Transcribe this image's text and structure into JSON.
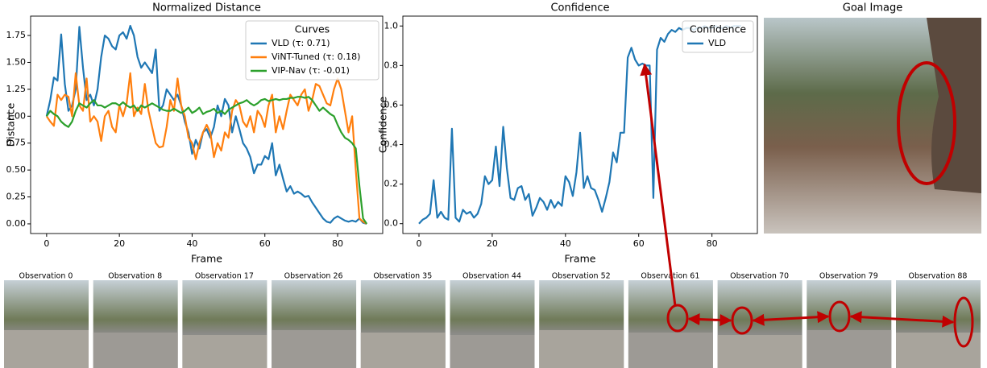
{
  "chart_data": [
    {
      "type": "line",
      "title": "Normalized Distance",
      "x_label": "Frame",
      "y_label": "Distance",
      "x": [
        0,
        1,
        2,
        3,
        4,
        5,
        6,
        7,
        8,
        9,
        10,
        11,
        12,
        13,
        14,
        15,
        16,
        17,
        18,
        19,
        20,
        21,
        22,
        23,
        24,
        25,
        26,
        27,
        28,
        29,
        30,
        31,
        32,
        33,
        34,
        35,
        36,
        37,
        38,
        39,
        40,
        41,
        42,
        43,
        44,
        45,
        46,
        47,
        48,
        49,
        50,
        51,
        52,
        53,
        54,
        55,
        56,
        57,
        58,
        59,
        60,
        61,
        62,
        63,
        64,
        65,
        66,
        67,
        68,
        69,
        70,
        71,
        72,
        73,
        74,
        75,
        76,
        77,
        78,
        79,
        80,
        81,
        82,
        83,
        84,
        85,
        86,
        87,
        88
      ],
      "xlim": [
        -4.4,
        92.4
      ],
      "xticks": [
        0,
        20,
        40,
        60,
        80
      ],
      "ylim": [
        -0.09,
        1.93
      ],
      "yticks": [
        {
          "value": 0,
          "label": "0.00"
        },
        0.25,
        {
          "value": 0.5,
          "label": "0.50"
        },
        0.75,
        {
          "value": 1,
          "label": "1.00"
        },
        1.25,
        {
          "value": 1.5,
          "label": "1.50"
        },
        1.75
      ],
      "legend_title": "Curves",
      "legend": "upper right",
      "series": [
        {
          "name": "VLD (τ: 0.71)",
          "color": "#1f77b4",
          "values": [
            1.0,
            1.15,
            1.36,
            1.33,
            1.76,
            1.3,
            1.05,
            1.1,
            1.25,
            1.83,
            1.45,
            1.15,
            1.2,
            1.1,
            1.25,
            1.55,
            1.75,
            1.72,
            1.65,
            1.62,
            1.75,
            1.78,
            1.72,
            1.84,
            1.75,
            1.55,
            1.45,
            1.5,
            1.45,
            1.4,
            1.62,
            1.05,
            1.1,
            1.25,
            1.2,
            1.15,
            1.2,
            1.1,
            0.95,
            0.85,
            0.65,
            0.78,
            0.7,
            0.85,
            0.88,
            0.8,
            0.9,
            1.1,
            1.0,
            1.16,
            1.1,
            0.85,
            1.0,
            0.88,
            0.75,
            0.7,
            0.62,
            0.47,
            0.55,
            0.55,
            0.63,
            0.6,
            0.75,
            0.45,
            0.55,
            0.42,
            0.3,
            0.35,
            0.28,
            0.3,
            0.28,
            0.25,
            0.26,
            0.2,
            0.15,
            0.1,
            0.05,
            0.02,
            0.01,
            0.05,
            0.07,
            0.05,
            0.03,
            0.02,
            0.03,
            0.02,
            0.05,
            0.01,
            0.0
          ]
        },
        {
          "name": "ViNT-Tuned (τ: 0.18)",
          "color": "#ff7f0e",
          "values": [
            1.0,
            0.95,
            0.91,
            1.2,
            1.15,
            1.2,
            1.18,
            1.0,
            1.4,
            1.1,
            1.05,
            1.35,
            0.95,
            1.0,
            0.95,
            0.77,
            1.0,
            1.05,
            0.9,
            0.85,
            1.1,
            1.0,
            1.12,
            1.4,
            1.0,
            1.08,
            1.02,
            1.3,
            1.05,
            0.9,
            0.75,
            0.71,
            0.72,
            0.9,
            1.15,
            1.05,
            1.35,
            1.1,
            1.0,
            0.8,
            0.75,
            0.6,
            0.75,
            0.85,
            0.92,
            0.85,
            0.62,
            0.75,
            0.68,
            0.85,
            0.8,
            1.05,
            1.15,
            1.1,
            0.95,
            0.9,
            1.0,
            0.85,
            1.05,
            1.0,
            0.9,
            1.1,
            1.2,
            0.85,
            1.0,
            0.88,
            1.05,
            1.2,
            1.15,
            1.1,
            1.2,
            1.25,
            1.05,
            1.15,
            1.3,
            1.28,
            1.2,
            1.12,
            1.1,
            1.25,
            1.35,
            1.25,
            1.05,
            0.85,
            1.0,
            0.5,
            0.05,
            0.02,
            0.0
          ]
        },
        {
          "name": "VIP-Nav (τ: -0.01)",
          "color": "#2ca02c",
          "values": [
            1.0,
            1.05,
            1.02,
            1.0,
            0.95,
            0.92,
            0.9,
            0.95,
            1.05,
            1.12,
            1.1,
            1.08,
            1.12,
            1.15,
            1.1,
            1.1,
            1.08,
            1.1,
            1.12,
            1.12,
            1.1,
            1.13,
            1.1,
            1.08,
            1.1,
            1.05,
            1.1,
            1.08,
            1.1,
            1.12,
            1.1,
            1.08,
            1.06,
            1.05,
            1.05,
            1.07,
            1.05,
            1.03,
            1.05,
            1.08,
            1.03,
            1.05,
            1.08,
            1.02,
            1.04,
            1.05,
            1.07,
            1.03,
            1.05,
            1.02,
            1.06,
            1.08,
            1.1,
            1.12,
            1.13,
            1.15,
            1.12,
            1.1,
            1.12,
            1.15,
            1.16,
            1.14,
            1.15,
            1.16,
            1.15,
            1.16,
            1.16,
            1.17,
            1.17,
            1.18,
            1.18,
            1.17,
            1.18,
            1.15,
            1.1,
            1.05,
            1.08,
            1.05,
            1.02,
            1.0,
            0.92,
            0.85,
            0.8,
            0.78,
            0.75,
            0.7,
            0.35,
            0.05,
            0.0
          ]
        }
      ]
    },
    {
      "type": "line",
      "title": "Confidence",
      "x_label": "Frame",
      "y_label": "Confidence",
      "x": [
        0,
        1,
        2,
        3,
        4,
        5,
        6,
        7,
        8,
        9,
        10,
        11,
        12,
        13,
        14,
        15,
        16,
        17,
        18,
        19,
        20,
        21,
        22,
        23,
        24,
        25,
        26,
        27,
        28,
        29,
        30,
        31,
        32,
        33,
        34,
        35,
        36,
        37,
        38,
        39,
        40,
        41,
        42,
        43,
        44,
        45,
        46,
        47,
        48,
        49,
        50,
        51,
        52,
        53,
        54,
        55,
        56,
        57,
        58,
        59,
        60,
        61,
        62,
        63,
        64,
        65,
        66,
        67,
        68,
        69,
        70,
        71,
        72,
        73,
        74,
        75,
        76,
        77,
        78,
        79,
        80,
        81,
        82,
        83,
        84,
        85,
        86,
        87,
        88
      ],
      "xlim": [
        -4.4,
        92.4
      ],
      "xticks": [
        0,
        20,
        40,
        60,
        80
      ],
      "ylim": [
        -0.05,
        1.05
      ],
      "yticks": [
        {
          "value": 0,
          "label": "0.0"
        },
        0.2,
        0.4,
        0.6,
        0.8,
        {
          "value": 1,
          "label": "1.0"
        }
      ],
      "legend_title": "Confidence",
      "legend": "upper right",
      "series": [
        {
          "name": "VLD",
          "color": "#1f77b4",
          "values": [
            0.0,
            0.02,
            0.03,
            0.05,
            0.22,
            0.03,
            0.06,
            0.03,
            0.02,
            0.48,
            0.03,
            0.01,
            0.07,
            0.05,
            0.06,
            0.03,
            0.05,
            0.1,
            0.24,
            0.2,
            0.22,
            0.39,
            0.19,
            0.49,
            0.28,
            0.13,
            0.12,
            0.18,
            0.19,
            0.12,
            0.15,
            0.04,
            0.08,
            0.13,
            0.11,
            0.07,
            0.12,
            0.08,
            0.11,
            0.09,
            0.24,
            0.21,
            0.14,
            0.26,
            0.46,
            0.18,
            0.24,
            0.18,
            0.17,
            0.12,
            0.06,
            0.13,
            0.21,
            0.36,
            0.31,
            0.46,
            0.46,
            0.84,
            0.89,
            0.83,
            0.8,
            0.81,
            0.8,
            0.8,
            0.13,
            0.88,
            0.94,
            0.92,
            0.96,
            0.98,
            0.97,
            0.99,
            0.98,
            0.99,
            0.99,
            0.98,
            0.99,
            0.99,
            1.0,
            0.99,
            0.99,
            1.0,
            0.99,
            0.99,
            1.0,
            0.99,
            1.0,
            1.0,
            1.0
          ]
        }
      ]
    }
  ],
  "goal_image": {
    "title": "Goal Image"
  },
  "observations": [
    "Observation 0",
    "Observation 8",
    "Observation 17",
    "Observation 26",
    "Observation 35",
    "Observation 44",
    "Observation 52",
    "Observation 61",
    "Observation 70",
    "Observation 79",
    "Observation 88"
  ]
}
